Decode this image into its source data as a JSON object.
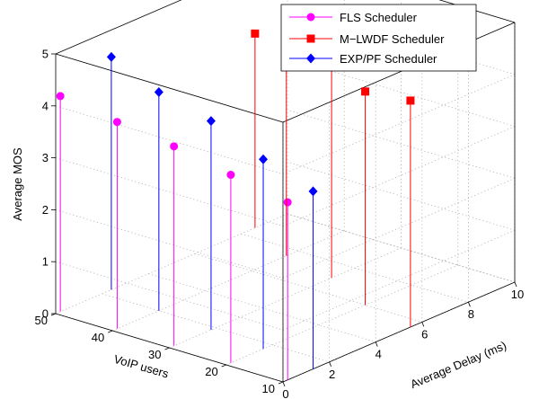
{
  "chart_data": {
    "type": "stem3d",
    "xlabel": "VoIP users",
    "ylabel": "Average Delay (ms)",
    "zlabel": "Average MOS",
    "xlim": [
      10,
      50
    ],
    "ylim": [
      0,
      10
    ],
    "zlim": [
      0,
      5
    ],
    "x_ticks": [
      "10",
      "20",
      "30",
      "40",
      "50"
    ],
    "y_ticks": [
      "0",
      "2",
      "4",
      "6",
      "8",
      "10"
    ],
    "z_ticks": [
      "0",
      "1",
      "2",
      "3",
      "4",
      "5"
    ],
    "grid": true,
    "legend_position": "top-right",
    "series": [
      {
        "name": "FLS Scheduler",
        "color": "#ff00ff",
        "marker": "circle",
        "points": [
          {
            "x": 50,
            "y": 0.2,
            "z": 4.15
          },
          {
            "x": 40,
            "y": 0.2,
            "z": 3.98
          },
          {
            "x": 30,
            "y": 0.2,
            "z": 3.84
          },
          {
            "x": 20,
            "y": 0.2,
            "z": 3.62
          },
          {
            "x": 10,
            "y": 0.2,
            "z": 3.42
          }
        ]
      },
      {
        "name": "M−LWDF Scheduler",
        "color": "#ff0000",
        "marker": "square",
        "points": [
          {
            "x": 50,
            "y": 8.6,
            "z": 3.74
          },
          {
            "x": 40,
            "y": 7.5,
            "z": 4.17
          },
          {
            "x": 30,
            "y": 7.0,
            "z": 4.88
          },
          {
            "x": 20,
            "y": 6.0,
            "z": 4.11
          },
          {
            "x": 10,
            "y": 5.5,
            "z": 4.36
          }
        ]
      },
      {
        "name": "EXP/PF Scheduler",
        "color": "#0000ff",
        "marker": "diamond",
        "points": [
          {
            "x": 50,
            "y": 2.4,
            "z": 4.48
          },
          {
            "x": 40,
            "y": 2.0,
            "z": 4.21
          },
          {
            "x": 30,
            "y": 1.8,
            "z": 4.02
          },
          {
            "x": 20,
            "y": 1.6,
            "z": 3.65
          },
          {
            "x": 10,
            "y": 1.3,
            "z": 3.42
          }
        ]
      }
    ]
  }
}
